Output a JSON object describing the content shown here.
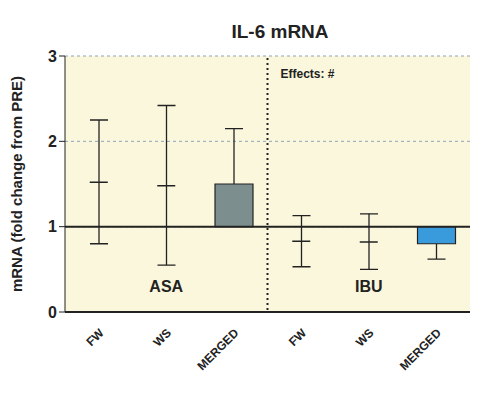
{
  "chart_data": {
    "type": "bar",
    "title": "IL-6 mRNA",
    "y_label": "mRNA (fold change from PRE)",
    "categories": [
      "FW",
      "WS",
      "MERGED",
      "FW",
      "WS",
      "MERGED"
    ],
    "group_labels": [
      "ASA",
      "IBU"
    ],
    "annotations": [
      "Effects: #"
    ],
    "baseline": 1,
    "series": [
      {
        "type": "point",
        "marker": "line",
        "color": "#222222",
        "values": [
          1.52,
          1.48,
          null,
          0.83,
          0.82,
          null
        ],
        "error_low": [
          0.8,
          0.55,
          null,
          0.53,
          0.5,
          null
        ],
        "error_high": [
          2.25,
          2.42,
          null,
          1.13,
          1.15,
          null
        ]
      },
      {
        "type": "bar",
        "colors": [
          null,
          null,
          "#7d8e8e",
          null,
          null,
          "#3a9bdc"
        ],
        "values": [
          null,
          null,
          1.5,
          null,
          null,
          0.8
        ],
        "error_low": [
          null,
          null,
          null,
          null,
          null,
          0.62
        ],
        "error_high": [
          null,
          null,
          2.15,
          null,
          null,
          null
        ]
      }
    ],
    "ylim": [
      0,
      3
    ],
    "yticks": [
      0,
      1,
      2,
      3
    ],
    "grid": true
  }
}
